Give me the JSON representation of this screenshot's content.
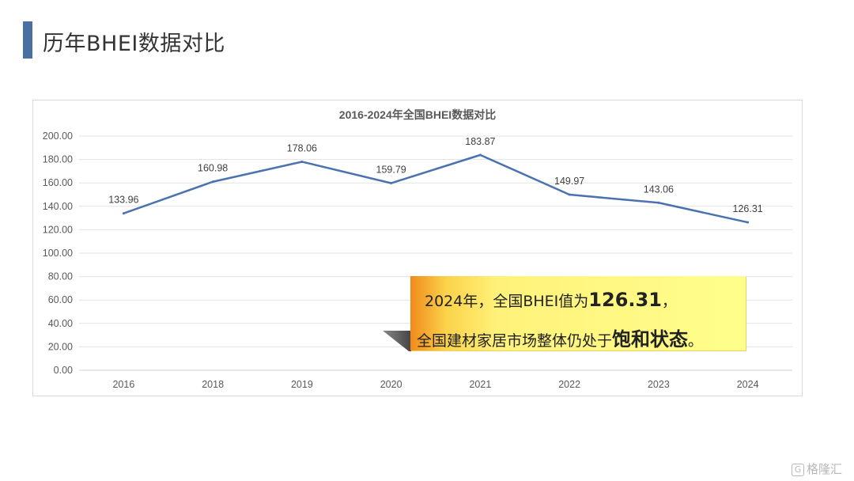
{
  "page_title": "历年BHEI数据对比",
  "chart_data": {
    "type": "line",
    "title": "2016-2024年全国BHEI数据对比",
    "categories": [
      "2016",
      "2018",
      "2019",
      "2020",
      "2021",
      "2022",
      "2023",
      "2024"
    ],
    "series": [
      {
        "values": [
          133.96,
          160.98,
          178.06,
          159.79,
          183.87,
          149.97,
          143.06,
          126.31
        ]
      }
    ],
    "data_labels": [
      "133.96",
      "160.98",
      "178.06",
      "159.79",
      "183.87",
      "149.97",
      "143.06",
      "126.31"
    ],
    "y_ticks": [
      "0.00",
      "20.00",
      "40.00",
      "60.00",
      "80.00",
      "100.00",
      "120.00",
      "140.00",
      "160.00",
      "180.00",
      "200.00"
    ],
    "ylim": [
      0,
      200
    ],
    "grid": true,
    "line_color": "#4a72b0"
  },
  "callout": {
    "line1_prefix": "2024年，全国BHEI值为",
    "line1_value": "126.31",
    "line1_suffix": "，",
    "line2_prefix": "全国建材家居市场整体仍处于",
    "line2_emphasis": "饱和状态",
    "line2_suffix": "。"
  },
  "watermark": {
    "logo": "G",
    "text": "格隆汇"
  }
}
